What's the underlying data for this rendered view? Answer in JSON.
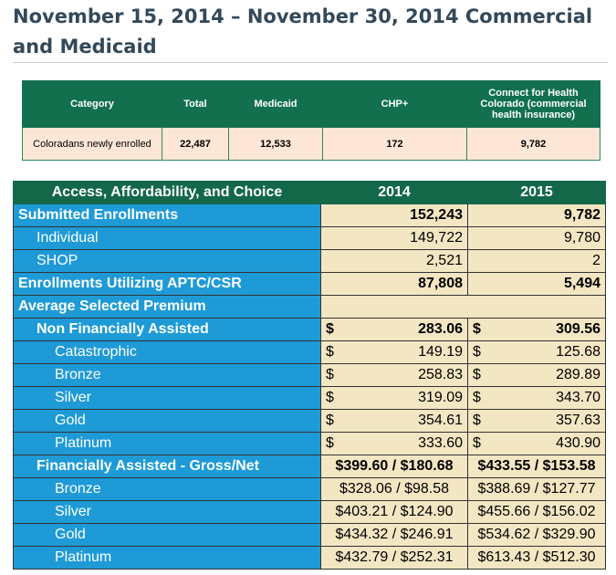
{
  "title": "November 15, 2014 – November 30, 2014 Commercial and Medicaid",
  "summary": {
    "headers": [
      "Category",
      "Total",
      "Medicaid",
      "CHP+",
      "Connect for Health Colorado (commercial health insurance)"
    ],
    "row": [
      "Coloradans newly enrolled",
      "22,487",
      "12,533",
      "172",
      "9,782"
    ]
  },
  "main": {
    "headers": [
      "Access, Affordability, and Choice",
      "2014",
      "2015"
    ],
    "rows": [
      {
        "label": "Submitted Enrollments",
        "v2014": "152,243",
        "v2015": "9,782",
        "style": "num",
        "bold": true,
        "indent": 0
      },
      {
        "label": "Individual",
        "v2014": "149,722",
        "v2015": "9,780",
        "style": "num",
        "bold": false,
        "indent": 1
      },
      {
        "label": "SHOP",
        "v2014": "2,521",
        "v2015": "2",
        "style": "num",
        "bold": false,
        "indent": 1
      },
      {
        "label": "Enrollments Utilizing APTC/CSR",
        "v2014": "87,808",
        "v2015": "5,494",
        "style": "num",
        "bold": true,
        "indent": 0
      },
      {
        "label": "Average Selected Premium",
        "v2014": "",
        "v2015": "",
        "style": "span",
        "bold": true,
        "indent": 0
      },
      {
        "label": "Non Financially Assisted",
        "v2014": "283.06",
        "v2015": "309.56",
        "style": "dollar",
        "bold": true,
        "indent": 1
      },
      {
        "label": "Catastrophic",
        "v2014": "149.19",
        "v2015": "125.68",
        "style": "dollar",
        "bold": false,
        "indent": 2
      },
      {
        "label": "Bronze",
        "v2014": "258.83",
        "v2015": "289.89",
        "style": "dollar",
        "bold": false,
        "indent": 2
      },
      {
        "label": "Silver",
        "v2014": "319.09",
        "v2015": "343.70",
        "style": "dollar",
        "bold": false,
        "indent": 2
      },
      {
        "label": "Gold",
        "v2014": "354.61",
        "v2015": "357.63",
        "style": "dollar",
        "bold": false,
        "indent": 2
      },
      {
        "label": "Platinum",
        "v2014": "333.60",
        "v2015": "430.90",
        "style": "dollar",
        "bold": false,
        "indent": 2
      },
      {
        "label": "Financially Assisted - Gross/Net",
        "v2014": "$399.60 / $180.68",
        "v2015": "$433.55 / $153.58",
        "style": "center",
        "bold": true,
        "indent": 1
      },
      {
        "label": "Bronze",
        "v2014": "$328.06 / $98.58",
        "v2015": "$388.69 / $127.77",
        "style": "center",
        "bold": false,
        "indent": 2
      },
      {
        "label": "Silver",
        "v2014": "$403.21 / $124.90",
        "v2015": "$455.66 / $156.02",
        "style": "center",
        "bold": false,
        "indent": 2
      },
      {
        "label": "Gold",
        "v2014": "$434.32 / $246.91",
        "v2015": "$534.62 / $329.90",
        "style": "center",
        "bold": false,
        "indent": 2
      },
      {
        "label": "Platinum",
        "v2014": "$432.79 / $252.31",
        "v2015": "$613.43 / $512.30",
        "style": "center",
        "bold": false,
        "indent": 2
      }
    ],
    "currency_symbol": "$"
  },
  "colors": {
    "header_green": "#14684a",
    "label_blue": "#1e9ad6",
    "value_cream": "#f3e6c3",
    "summary_row": "#fde6d6"
  }
}
